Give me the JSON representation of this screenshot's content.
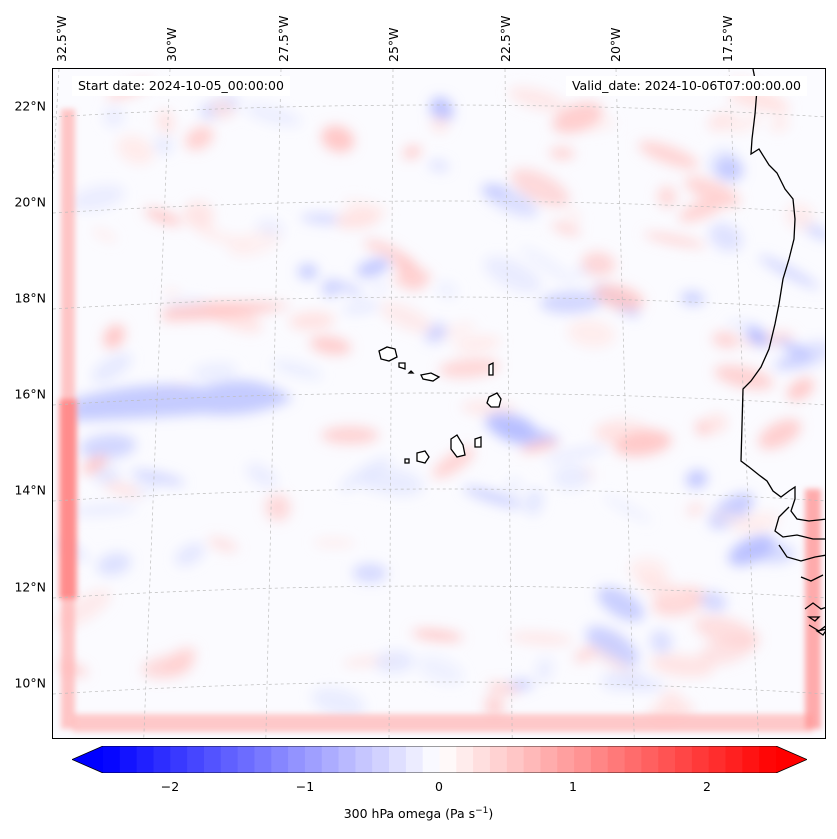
{
  "header": {
    "start_date": "Start date: 2024-10-05_00:00:00",
    "valid_date": "Valid_date: 2024-10-06T07:00:00.00"
  },
  "longitude_labels": [
    "32.5°W",
    "30°W",
    "27.5°W",
    "25°W",
    "22.5°W",
    "20°W",
    "17.5°W"
  ],
  "latitude_labels": [
    "22°N",
    "20°N",
    "18°N",
    "16°N",
    "14°N",
    "12°N",
    "10°N"
  ],
  "colorbar": {
    "ticks": [
      "−2",
      "−1",
      "0",
      "1",
      "2"
    ],
    "tick_values": [
      -2,
      -1,
      0,
      1,
      2
    ],
    "range": [
      -2.5,
      2.5
    ],
    "label_main": "300 hPa omega (Pa s",
    "label_exp": "−1",
    "label_end": ")",
    "colormap": "bwr",
    "color_negative": "#0000ff",
    "color_zero": "#ffffff",
    "color_positive": "#ff0000",
    "extend": "both"
  },
  "map": {
    "variable": "300 hPa omega",
    "lon_range": [
      "33°W",
      "16°W"
    ],
    "lat_range": [
      "8.8°N",
      "22.8°N"
    ],
    "features": [
      "west-africa-coastline",
      "cape-verde-islands"
    ],
    "gridlines": "dashed light gray"
  }
}
